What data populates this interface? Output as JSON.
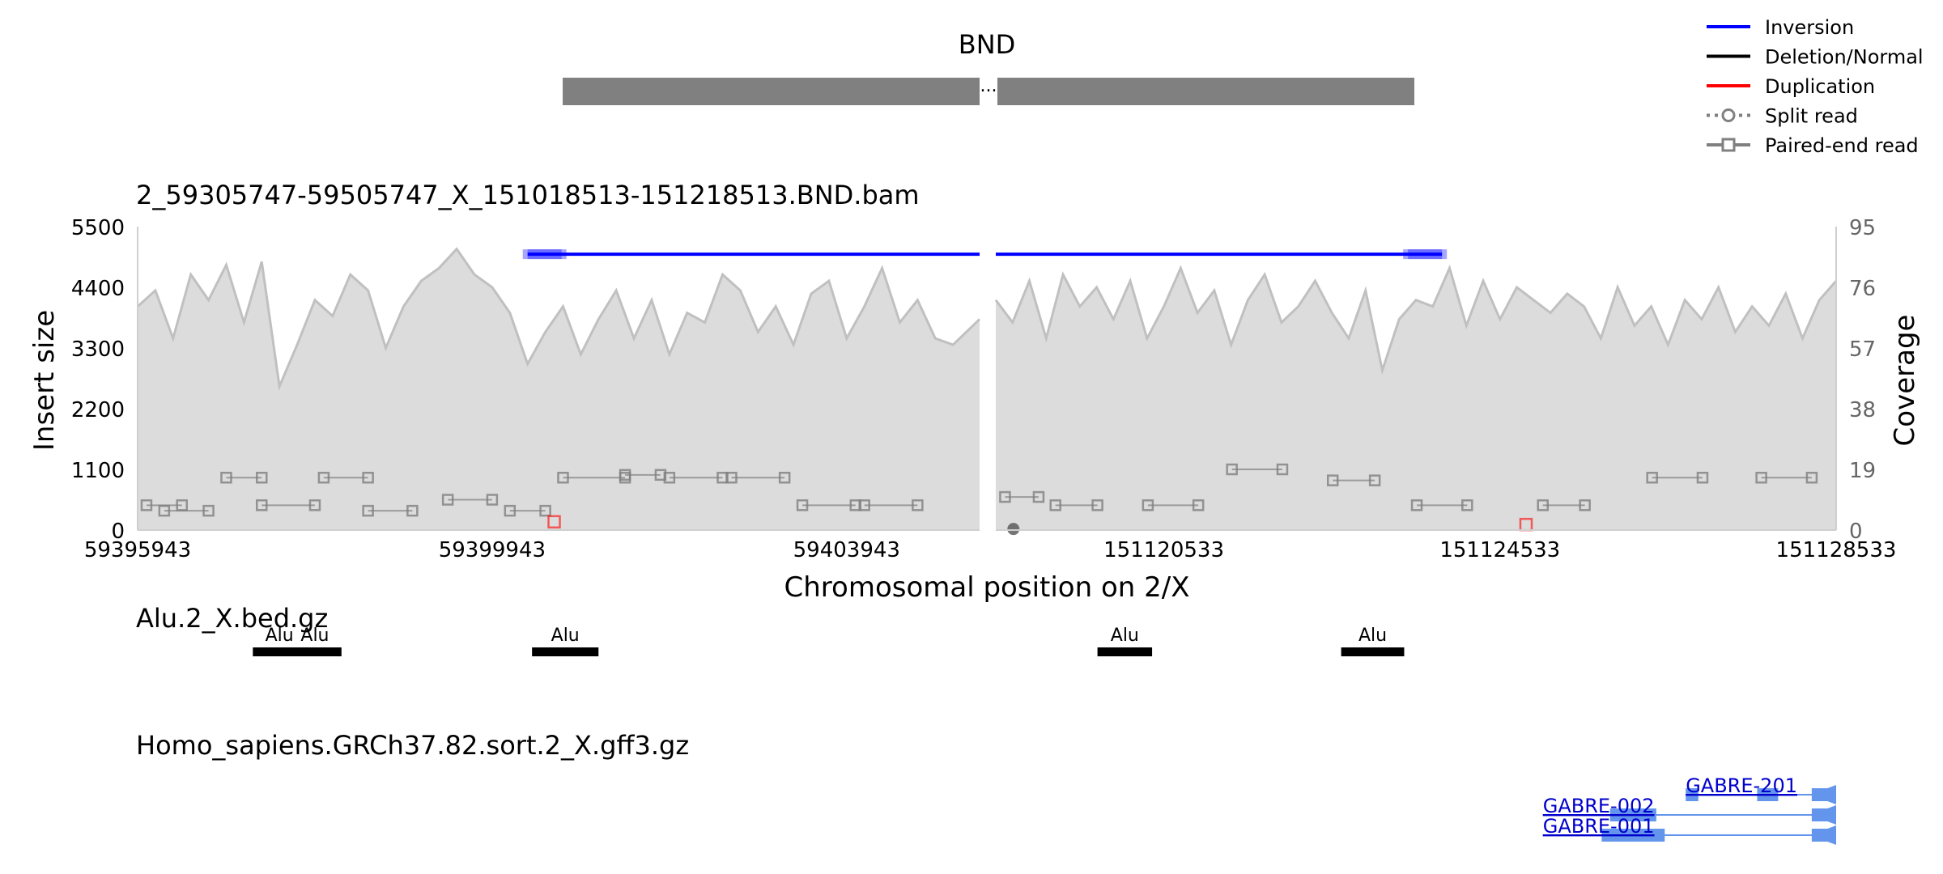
{
  "chart_data": {
    "type": "line",
    "title": "BND",
    "plot_title": "2_59305747-59505747_X_151018513-151218513.BND.bam",
    "xlabel": "Chromosomal position on 2/X",
    "ylabel_left": "Insert size",
    "ylabel_right": "Coverage",
    "ylim_left": [
      0,
      5500
    ],
    "ylim_right": [
      0,
      95
    ],
    "yticks_left": [
      "0",
      "1100",
      "2200",
      "3300",
      "4400",
      "5500"
    ],
    "yticks_right": [
      "0",
      "19",
      "38",
      "57",
      "76",
      "95"
    ],
    "segments": [
      {
        "chrom": "2",
        "start": 59395943,
        "end": 59405443
      },
      {
        "chrom": "X",
        "start": 151118533,
        "end": 151128533
      }
    ],
    "xticks": [
      "59395943",
      "59399943",
      "59403943",
      "151120533",
      "151124533",
      "151128533"
    ],
    "ideogram_separator": "...",
    "legend": {
      "placement": "top-right",
      "items": [
        {
          "label": "Inversion",
          "style": "line",
          "color": "#0000ff"
        },
        {
          "label": "Deletion/Normal",
          "style": "line",
          "color": "#000000"
        },
        {
          "label": "Duplication",
          "style": "line",
          "color": "#ff0000"
        },
        {
          "label": "Split read",
          "style": "dotted-circle",
          "color": "#808080"
        },
        {
          "label": "Paired-end read",
          "style": "line-square",
          "color": "#808080"
        }
      ]
    },
    "inversion_reads": [
      {
        "segment": 0,
        "x1": 59400343,
        "x2": 59405443,
        "y": 5000
      },
      {
        "segment": 1,
        "x1": 151118533,
        "x2": 151123843,
        "y": 5000
      }
    ],
    "coverage_segment_1": [
      [
        59395943,
        70
      ],
      [
        59396143,
        75
      ],
      [
        59396343,
        60
      ],
      [
        59396543,
        80
      ],
      [
        59396743,
        72
      ],
      [
        59396943,
        83
      ],
      [
        59397143,
        65
      ],
      [
        59397343,
        84
      ],
      [
        59397543,
        45
      ],
      [
        59397743,
        58
      ],
      [
        59397943,
        72
      ],
      [
        59398143,
        67
      ],
      [
        59398343,
        80
      ],
      [
        59398543,
        75
      ],
      [
        59398743,
        57
      ],
      [
        59398943,
        70
      ],
      [
        59399143,
        78
      ],
      [
        59399343,
        82
      ],
      [
        59399543,
        88
      ],
      [
        59399743,
        80
      ],
      [
        59399943,
        76
      ],
      [
        59400143,
        68
      ],
      [
        59400343,
        52
      ],
      [
        59400543,
        62
      ],
      [
        59400743,
        70
      ],
      [
        59400943,
        55
      ],
      [
        59401143,
        66
      ],
      [
        59401343,
        75
      ],
      [
        59401543,
        60
      ],
      [
        59401743,
        72
      ],
      [
        59401943,
        55
      ],
      [
        59402143,
        68
      ],
      [
        59402343,
        65
      ],
      [
        59402543,
        80
      ],
      [
        59402743,
        75
      ],
      [
        59402943,
        62
      ],
      [
        59403143,
        70
      ],
      [
        59403343,
        58
      ],
      [
        59403543,
        74
      ],
      [
        59403743,
        78
      ],
      [
        59403943,
        60
      ],
      [
        59404143,
        70
      ],
      [
        59404343,
        82
      ],
      [
        59404543,
        65
      ],
      [
        59404743,
        72
      ],
      [
        59404943,
        60
      ],
      [
        59405143,
        58
      ],
      [
        59405443,
        66
      ]
    ],
    "coverage_segment_2": [
      [
        151118533,
        72
      ],
      [
        151118733,
        65
      ],
      [
        151118933,
        78
      ],
      [
        151119133,
        60
      ],
      [
        151119333,
        80
      ],
      [
        151119533,
        70
      ],
      [
        151119733,
        76
      ],
      [
        151119933,
        66
      ],
      [
        151120133,
        78
      ],
      [
        151120333,
        60
      ],
      [
        151120533,
        70
      ],
      [
        151120733,
        82
      ],
      [
        151120933,
        68
      ],
      [
        151121133,
        75
      ],
      [
        151121333,
        58
      ],
      [
        151121533,
        72
      ],
      [
        151121733,
        80
      ],
      [
        151121933,
        65
      ],
      [
        151122133,
        70
      ],
      [
        151122333,
        78
      ],
      [
        151122533,
        68
      ],
      [
        151122733,
        60
      ],
      [
        151122933,
        75
      ],
      [
        151123133,
        50
      ],
      [
        151123333,
        66
      ],
      [
        151123533,
        72
      ],
      [
        151123733,
        70
      ],
      [
        151123933,
        82
      ],
      [
        151124133,
        64
      ],
      [
        151124333,
        78
      ],
      [
        151124533,
        66
      ],
      [
        151124733,
        76
      ],
      [
        151124933,
        72
      ],
      [
        151125133,
        68
      ],
      [
        151125333,
        74
      ],
      [
        151125533,
        70
      ],
      [
        151125733,
        60
      ],
      [
        151125933,
        76
      ],
      [
        151126133,
        64
      ],
      [
        151126333,
        70
      ],
      [
        151126533,
        58
      ],
      [
        151126733,
        72
      ],
      [
        151126933,
        66
      ],
      [
        151127133,
        76
      ],
      [
        151127333,
        62
      ],
      [
        151127533,
        70
      ],
      [
        151127733,
        64
      ],
      [
        151127933,
        74
      ],
      [
        151128133,
        60
      ],
      [
        151128333,
        72
      ],
      [
        151128533,
        78
      ]
    ],
    "paired_end_reads": [
      {
        "segment": 0,
        "x1": 59396043,
        "x2": 59396443,
        "y": 450
      },
      {
        "segment": 0,
        "x1": 59396243,
        "x2": 59396743,
        "y": 350
      },
      {
        "segment": 0,
        "x1": 59396943,
        "x2": 59397343,
        "y": 950
      },
      {
        "segment": 0,
        "x1": 59397343,
        "x2": 59397943,
        "y": 450
      },
      {
        "segment": 0,
        "x1": 59398043,
        "x2": 59398543,
        "y": 950
      },
      {
        "segment": 0,
        "x1": 59398543,
        "x2": 59399043,
        "y": 350
      },
      {
        "segment": 0,
        "x1": 59399443,
        "x2": 59399943,
        "y": 550
      },
      {
        "segment": 0,
        "x1": 59400143,
        "x2": 59400543,
        "y": 350
      },
      {
        "segment": 0,
        "x1": 59400743,
        "x2": 59401443,
        "y": 950
      },
      {
        "segment": 0,
        "x1": 59401443,
        "x2": 59401843,
        "y": 1000
      },
      {
        "segment": 0,
        "x1": 59401943,
        "x2": 59402543,
        "y": 950
      },
      {
        "segment": 0,
        "x1": 59402643,
        "x2": 59403243,
        "y": 950
      },
      {
        "segment": 0,
        "x1": 59403443,
        "x2": 59404043,
        "y": 450
      },
      {
        "segment": 0,
        "x1": 59404143,
        "x2": 59404743,
        "y": 450
      },
      {
        "segment": 1,
        "x1": 151118643,
        "x2": 151119043,
        "y": 600
      },
      {
        "segment": 1,
        "x1": 151119243,
        "x2": 151119743,
        "y": 450
      },
      {
        "segment": 1,
        "x1": 151120343,
        "x2": 151120943,
        "y": 450
      },
      {
        "segment": 1,
        "x1": 151121343,
        "x2": 151121943,
        "y": 1100
      },
      {
        "segment": 1,
        "x1": 151122543,
        "x2": 151123043,
        "y": 900
      },
      {
        "segment": 1,
        "x1": 151123543,
        "x2": 151124143,
        "y": 450
      },
      {
        "segment": 1,
        "x1": 151125043,
        "x2": 151125543,
        "y": 450
      },
      {
        "segment": 1,
        "x1": 151126343,
        "x2": 151126943,
        "y": 950
      },
      {
        "segment": 1,
        "x1": 151127643,
        "x2": 151128243,
        "y": 950
      }
    ],
    "split_reads": [
      {
        "segment": 1,
        "x": 151118743,
        "y": 20
      }
    ],
    "duplication_reads": [
      {
        "segment": 0,
        "x": 59400643,
        "y": 150
      },
      {
        "segment": 1,
        "x": 151124843,
        "y": 100
      }
    ]
  },
  "tracks": {
    "alu": {
      "title": "Alu.2_X.bed.gz",
      "features": [
        {
          "label": "Alu",
          "segment": 0,
          "start": 59397243,
          "end": 59397843
        },
        {
          "label": "Alu",
          "segment": 0,
          "start": 59397643,
          "end": 59398243
        },
        {
          "label": "Alu",
          "segment": 0,
          "start": 59400393,
          "end": 59401143
        },
        {
          "label": "Alu",
          "segment": 1,
          "start": 151119743,
          "end": 151120393
        },
        {
          "label": "Alu",
          "segment": 1,
          "start": 151122643,
          "end": 151123393
        }
      ]
    },
    "genes": {
      "title": "Homo_sapiens.GRCh37.82.sort.2_X.gff3.gz",
      "transcripts": [
        {
          "label": "GABRE-201",
          "segment": 1,
          "start": 151126743,
          "end": 151128533,
          "row": 0,
          "exons": [
            [
              151126743,
              151126893
            ],
            [
              151127593,
              151127843
            ],
            [
              151128243,
              151128533
            ]
          ]
        },
        {
          "label": "GABRE-002",
          "segment": 1,
          "start": 151125043,
          "end": 151128533,
          "row": 1,
          "exons": [
            [
              151125843,
              151126393
            ],
            [
              151128243,
              151128533
            ]
          ]
        },
        {
          "label": "GABRE-001",
          "segment": 1,
          "start": 151125043,
          "end": 151128533,
          "row": 2,
          "exons": [
            [
              151125743,
              151126493
            ],
            [
              151128243,
              151128533
            ]
          ]
        }
      ],
      "color": "#6495ed",
      "label_color": "#0000cc"
    }
  },
  "colors": {
    "coverage_fill": "#dcdcdc",
    "coverage_line": "#c0c0c0",
    "inversion": "#0000ff",
    "duplication": "#ff0000",
    "paired_end": "#808080",
    "ideogram": "#808080",
    "alu_bar": "#000000"
  }
}
